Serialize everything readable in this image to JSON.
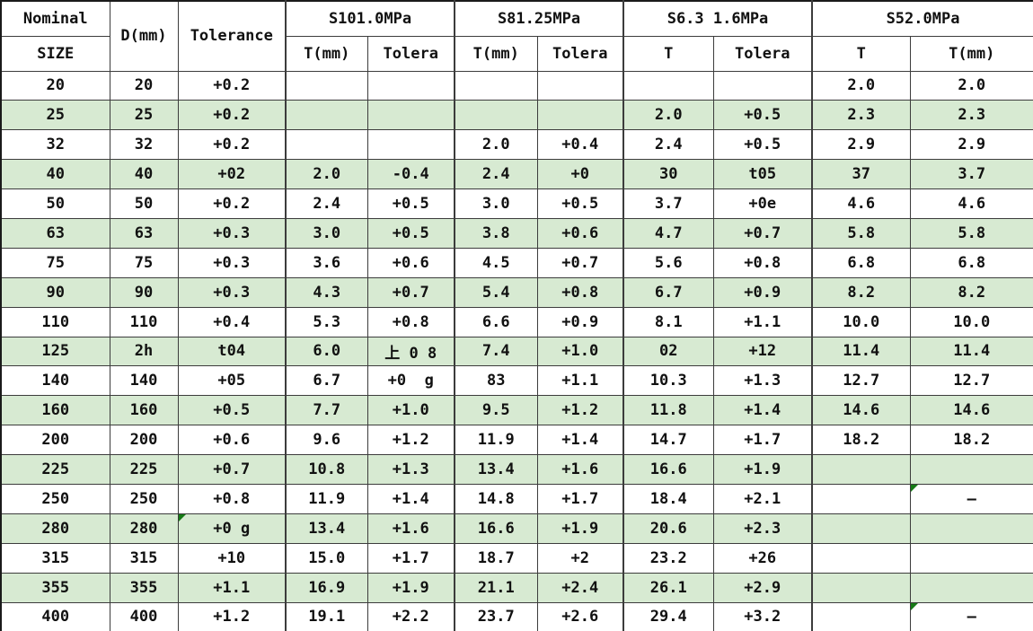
{
  "table": {
    "header": {
      "nominal_top": "Nominal",
      "nominal_bottom": "SIZE",
      "d_label": "D(mm)",
      "tolerance_label": "Tolerance",
      "groups": [
        {
          "label": "S101.0MPa",
          "sub": [
            "T(mm)",
            "Tolera"
          ]
        },
        {
          "label": "S81.25MPa",
          "sub": [
            "T(mm)",
            "Tolera"
          ]
        },
        {
          "label": "S6.3 1.6MPa",
          "sub": [
            "T",
            "Tolera"
          ]
        },
        {
          "label": "S52.0MPa",
          "sub": [
            "T",
            "T(mm)"
          ]
        }
      ]
    },
    "rows": [
      {
        "cells": [
          "20",
          "20",
          "+0.2",
          "",
          "",
          "",
          "",
          "",
          "",
          "2.0",
          "2.0"
        ],
        "shaded": false,
        "markers": []
      },
      {
        "cells": [
          "25",
          "25",
          "+0.2",
          "",
          "",
          "",
          "",
          "2.0",
          "+0.5",
          "2.3",
          "2.3"
        ],
        "shaded": true,
        "markers": []
      },
      {
        "cells": [
          "32",
          "32",
          "+0.2",
          "",
          "",
          "2.0",
          "+0.4",
          "2.4",
          "+0.5",
          "2.9",
          "2.9"
        ],
        "shaded": false,
        "markers": []
      },
      {
        "cells": [
          "40",
          "40",
          "+02",
          "2.0",
          "-0.4",
          "2.4",
          "+0",
          "30",
          "t05",
          "37",
          "3.7"
        ],
        "shaded": true,
        "markers": []
      },
      {
        "cells": [
          "50",
          "50",
          "+0.2",
          "2.4",
          "+0.5",
          "3.0",
          "+0.5",
          "3.7",
          "+0e",
          "4.6",
          "4.6"
        ],
        "shaded": false,
        "markers": []
      },
      {
        "cells": [
          "63",
          "63",
          "+0.3",
          "3.0",
          "+0.5",
          "3.8",
          "+0.6",
          "4.7",
          "+0.7",
          "5.8",
          "5.8"
        ],
        "shaded": true,
        "markers": []
      },
      {
        "cells": [
          "75",
          "75",
          "+0.3",
          "3.6",
          "+0.6",
          "4.5",
          "+0.7",
          "5.6",
          "+0.8",
          "6.8",
          "6.8"
        ],
        "shaded": false,
        "markers": []
      },
      {
        "cells": [
          "90",
          "90",
          "+0.3",
          "4.3",
          "+0.7",
          "5.4",
          "+0.8",
          "6.7",
          "+0.9",
          "8.2",
          "8.2"
        ],
        "shaded": true,
        "markers": []
      },
      {
        "cells": [
          "110",
          "110",
          "+0.4",
          "5.3",
          "+0.8",
          "6.6",
          "+0.9",
          "8.1",
          "+1.1",
          "10.0",
          "10.0"
        ],
        "shaded": false,
        "markers": []
      },
      {
        "cells": [
          "125",
          "2h",
          "t04",
          "6.0",
          "上 0 8",
          "7.4",
          "+1.0",
          "02",
          "+12",
          "11.4",
          "11.4"
        ],
        "shaded": true,
        "markers": []
      },
      {
        "cells": [
          "140",
          "140",
          "+05",
          "6.7",
          "+0  g",
          "83",
          "+1.1",
          "10.3",
          "+1.3",
          "12.7",
          "12.7"
        ],
        "shaded": false,
        "markers": []
      },
      {
        "cells": [
          "160",
          "160",
          "+0.5",
          "7.7",
          "+1.0",
          "9.5",
          "+1.2",
          "11.8",
          "+1.4",
          "14.6",
          "14.6"
        ],
        "shaded": true,
        "markers": []
      },
      {
        "cells": [
          "200",
          "200",
          "+0.6",
          "9.6",
          "+1.2",
          "11.9",
          "+1.4",
          "14.7",
          "+1.7",
          "18.2",
          "18.2"
        ],
        "shaded": false,
        "markers": []
      },
      {
        "cells": [
          "225",
          "225",
          "+0.7",
          "10.8",
          "+1.3",
          "13.4",
          "+1.6",
          "16.6",
          "+1.9",
          "",
          ""
        ],
        "shaded": true,
        "markers": []
      },
      {
        "cells": [
          "250",
          "250",
          "+0.8",
          "11.9",
          "+1.4",
          "14.8",
          "+1.7",
          "18.4",
          "+2.1",
          "",
          "—"
        ],
        "shaded": false,
        "markers": [
          10
        ]
      },
      {
        "cells": [
          "280",
          "280",
          "+0 g",
          "13.4",
          "+1.6",
          "16.6",
          "+1.9",
          "20.6",
          "+2.3",
          "",
          ""
        ],
        "shaded": true,
        "markers": [
          2
        ]
      },
      {
        "cells": [
          "315",
          "315",
          "+10",
          "15.0",
          "+1.7",
          "18.7",
          "+2",
          "23.2",
          "+26",
          "",
          ""
        ],
        "shaded": false,
        "markers": []
      },
      {
        "cells": [
          "355",
          "355",
          "+1.1",
          "16.9",
          "+1.9",
          "21.1",
          "+2.4",
          "26.1",
          "+2.9",
          "",
          ""
        ],
        "shaded": true,
        "markers": []
      },
      {
        "cells": [
          "400",
          "400",
          "+1.2",
          "19.1",
          "+2.2",
          "23.7",
          "+2.6",
          "29.4",
          "+3.2",
          "",
          "—"
        ],
        "shaded": false,
        "markers": [
          10
        ]
      }
    ],
    "colors": {
      "row_shade": "#d7ead2",
      "marker_green": "#157a15",
      "grid": "#3c3c3c"
    }
  }
}
